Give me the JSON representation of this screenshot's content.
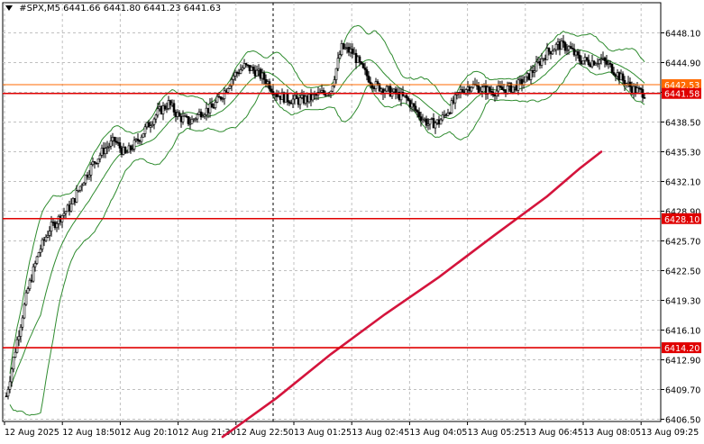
{
  "header": {
    "symbol": "#SPX,M5",
    "ohlc": "6441.66 6441.80 6441.23 6441.63"
  },
  "chart_data": {
    "type": "candlestick",
    "symbol": "#SPX",
    "timeframe": "M5",
    "ylim": [
      6406.5,
      6450.5
    ],
    "y_ticks": [
      "6448.10",
      "6444.90",
      "6441.70",
      "6438.50",
      "6435.30",
      "6432.10",
      "6428.90",
      "6425.70",
      "6422.50",
      "6419.30",
      "6416.10",
      "6412.90",
      "6409.70",
      "6406.50"
    ],
    "x_ticks": [
      "12 Aug 2025",
      "12 Aug 18:50",
      "12 Aug 20:10",
      "12 Aug 21:30",
      "12 Aug 22:50",
      "13 Aug 01:25",
      "13 Aug 02:45",
      "13 Aug 04:05",
      "13 Aug 05:25",
      "13 Aug 06:45",
      "13 Aug 08:05",
      "13 Aug 09:25"
    ],
    "horizontal_levels": [
      {
        "value": 6442.53,
        "label": "6442.53",
        "color": "#ff6a00"
      },
      {
        "value": 6441.58,
        "label": "6441.58",
        "color": "#e00000"
      },
      {
        "value": 6428.1,
        "label": "6428.10",
        "color": "#e00000"
      },
      {
        "value": 6414.2,
        "label": "6414.20",
        "color": "#e00000"
      }
    ],
    "close_path": [
      [
        0,
        6409.0
      ],
      [
        6,
        6415.0
      ],
      [
        12,
        6420.5
      ],
      [
        18,
        6424.5
      ],
      [
        24,
        6427.0
      ],
      [
        30,
        6428.3
      ],
      [
        36,
        6429.5
      ],
      [
        42,
        6432.0
      ],
      [
        48,
        6434.0
      ],
      [
        54,
        6435.5
      ],
      [
        60,
        6436.5
      ],
      [
        66,
        6435.0
      ],
      [
        72,
        6436.3
      ],
      [
        78,
        6438.0
      ],
      [
        84,
        6439.5
      ],
      [
        90,
        6440.5
      ],
      [
        96,
        6439.0
      ],
      [
        102,
        6438.5
      ],
      [
        108,
        6439.6
      ],
      [
        114,
        6440.0
      ],
      [
        120,
        6441.5
      ],
      [
        126,
        6443.5
      ],
      [
        132,
        6444.5
      ],
      [
        138,
        6444.0
      ],
      [
        144,
        6443.0
      ],
      [
        150,
        6441.5
      ],
      [
        156,
        6441.0
      ],
      [
        162,
        6440.8
      ],
      [
        168,
        6441.0
      ],
      [
        174,
        6441.5
      ],
      [
        180,
        6442.0
      ],
      [
        186,
        6446.5
      ],
      [
        192,
        6446.0
      ],
      [
        198,
        6444.0
      ],
      [
        204,
        6442.5
      ],
      [
        210,
        6442.0
      ],
      [
        216,
        6441.5
      ],
      [
        222,
        6441.0
      ],
      [
        228,
        6439.5
      ],
      [
        234,
        6438.3
      ],
      [
        240,
        6438.5
      ],
      [
        246,
        6440.0
      ],
      [
        252,
        6441.8
      ],
      [
        258,
        6442.5
      ],
      [
        264,
        6442.0
      ],
      [
        270,
        6441.8
      ],
      [
        276,
        6442.0
      ],
      [
        282,
        6442.3
      ],
      [
        288,
        6443.0
      ],
      [
        294,
        6444.5
      ],
      [
        300,
        6446.0
      ],
      [
        306,
        6446.8
      ],
      [
        312,
        6446.5
      ],
      [
        318,
        6445.2
      ],
      [
        324,
        6445.0
      ],
      [
        330,
        6445.2
      ],
      [
        336,
        6444.3
      ],
      [
        342,
        6443.0
      ],
      [
        348,
        6442.0
      ],
      [
        354,
        6441.6
      ]
    ],
    "series": [
      {
        "name": "Price (M5 candles)",
        "color": "#000000"
      },
      {
        "name": "Bollinger upper",
        "color": "#2e8b2e"
      },
      {
        "name": "Bollinger middle",
        "color": "#2e8b2e"
      },
      {
        "name": "Bollinger lower",
        "color": "#2e8b2e"
      },
      {
        "name": "Moving average",
        "color": "#d4143c",
        "points": [
          [
            120,
            6404.6
          ],
          [
            150,
            6408.8
          ],
          [
            180,
            6413.5
          ],
          [
            210,
            6417.8
          ],
          [
            240,
            6421.8
          ],
          [
            270,
            6426.2
          ],
          [
            300,
            6430.5
          ],
          [
            318,
            6433.5
          ],
          [
            330,
            6435.3
          ]
        ]
      }
    ],
    "grid": true,
    "background": "#ffffff"
  }
}
